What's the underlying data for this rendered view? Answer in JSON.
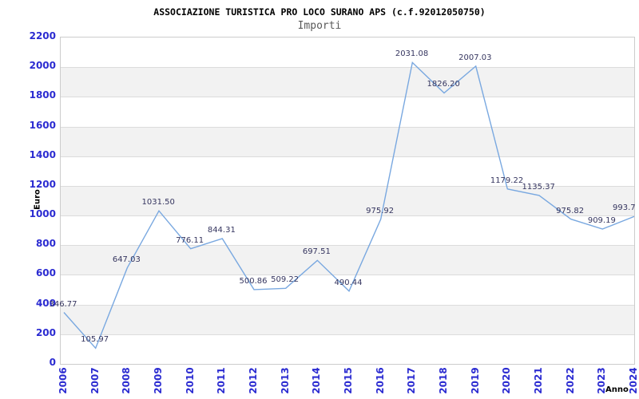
{
  "header": {
    "title": "ASSOCIAZIONE TURISTICA PRO LOCO SURANO APS (c.f.92012050750)",
    "subtitle": "Importi"
  },
  "chart_data": {
    "type": "line",
    "title": "ASSOCIAZIONE TURISTICA PRO LOCO SURANO APS (c.f.92012050750)",
    "subtitle": "Importi",
    "xlabel": "Anno",
    "ylabel": "Euro",
    "categories": [
      "2006",
      "2007",
      "2008",
      "2009",
      "2010",
      "2011",
      "2012",
      "2013",
      "2014",
      "2015",
      "2016",
      "2017",
      "2018",
      "2019",
      "2020",
      "2021",
      "2022",
      "2023",
      "2024"
    ],
    "series": [
      {
        "name": "Importi",
        "values": [
          346.77,
          105.97,
          647.03,
          1031.5,
          776.11,
          844.31,
          500.86,
          509.22,
          697.51,
          490.44,
          975.92,
          2031.08,
          1826.2,
          2007.03,
          1179.22,
          1135.37,
          975.82,
          909.19,
          993.7
        ]
      }
    ],
    "point_labels": [
      "346.77",
      "105.97",
      "647.03",
      "1031.50",
      "776.11",
      "844.31",
      "500.86",
      "509.22",
      "697.51",
      "490.44",
      "975.92",
      "2031.08",
      "1826.20",
      "2007.03",
      "1179.22",
      "1135.37",
      "975.82",
      "909.19",
      "993.7"
    ],
    "ylim": [
      0,
      2200
    ],
    "ytick_step": 200,
    "grid": true,
    "legend": "none",
    "bands_alternating": true,
    "colors": {
      "line": "#79a8e0",
      "tick_label": "#2b2bd1",
      "point_label": "#35355f",
      "band": "#f2f2f2",
      "gridline": "#dcdcdc",
      "border": "#cccccc",
      "title": "#000000",
      "subtitle": "#595959",
      "axis_title": "#000000"
    }
  }
}
